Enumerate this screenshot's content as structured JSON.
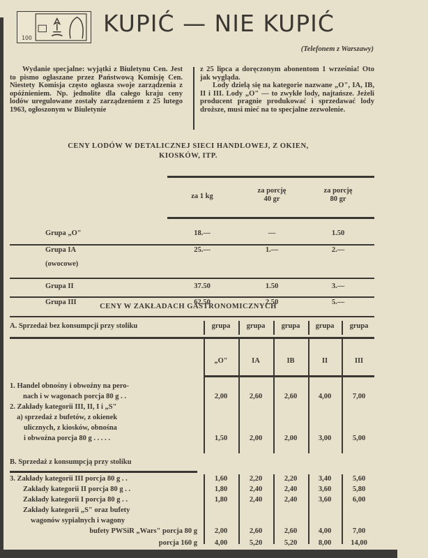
{
  "header": {
    "title": "KUPIĆ — NIE KUPIĆ",
    "subtitle": "(Telefonem z Warszawy)",
    "logo_text": [
      "100"
    ]
  },
  "intro": {
    "lead": "Wydanie specjalne:",
    "left": " wyjątki z Biuletynu Cen. Jest to pismo ogłaszane przez Państwową Komisję Cen. Niestety Komisja często ogłasza swoje zarządzenia z opóźnieniem. Np. jednolite dla całego kraju ceny lodów uregulowane zostały zarządzeniem z 25 lutego 1963, ogłoszonym w Biuletynie",
    "right1": "z 25 lipca a doręczonym abonentom 1 września! Oto jak wygląda.",
    "right2": "Lody dzielą się na kategorie nazwane „O\", IA, IB, II i III. Lody „O\" — to zwykłe lody, najtańsze. Jeżeli producent pragnie produkować i sprzedawać lody droższe, musi mieć na to specjalne zezwolenie."
  },
  "table1": {
    "title1": "CENY LODÓW W DETALICZNEJ SIECI HANDLOWEJ, Z OKIEN,",
    "title2": "KIOSKÓW, ITP.",
    "headers": [
      "za 1 kg",
      "za porcję\n40 gr",
      "za porcję\n80 gr"
    ],
    "rows": [
      {
        "label": "Grupa „O\"",
        "values": [
          "18.—",
          "—",
          "1.50"
        ]
      },
      {
        "label": "Grupa IA",
        "sub": "(owocowe)",
        "values": [
          "25.—",
          "1.—",
          "2.—"
        ]
      },
      {
        "label": "Grupa II",
        "values": [
          "37.50",
          "1.50",
          "3.—"
        ]
      },
      {
        "label": "Grupa III",
        "values": [
          "62.50",
          "2.50",
          "5.—"
        ]
      }
    ]
  },
  "table2": {
    "title": "CENY W ZAKŁADACH GASTRONOMICZNYCH",
    "sectionA": "A. Sprzedaż bez konsumpcji przy stoliku",
    "sectionB": "B. Sprzedaż z konsumpcją przy stoliku",
    "group_label": "grupa",
    "groups": [
      "„O\"",
      "IA",
      "IB",
      "II",
      "III"
    ],
    "rowsA": [
      {
        "lines": [
          "1. Handel obnośny i obwoźny na pero-",
          "nach i w wagonach porcja 80 g . ."
        ],
        "values": [
          "2,00",
          "2,60",
          "2,60",
          "4,00",
          "7,00"
        ]
      },
      {
        "lines": [
          "2. Zakłady kategorii III, II, I i „S\"",
          "a) sprzedaż z bufetów, z okienek",
          "ulicznych, z kiosków, obnośna",
          "i obwoźna porcja 80 g . . . . ."
        ],
        "values": [
          "1,50",
          "2,00",
          "2,00",
          "3,00",
          "5,00"
        ]
      }
    ],
    "rowsB": [
      {
        "lines": [
          "3. Zakłady kategorii III porcja 80 g . ."
        ],
        "values": [
          "1,60",
          "2,20",
          "2,20",
          "3,40",
          "5,60"
        ]
      },
      {
        "lines": [
          "Zakłady kategorii II porcja 80 g . ."
        ],
        "values": [
          "1,80",
          "2,40",
          "2,40",
          "3,60",
          "5,80"
        ]
      },
      {
        "lines": [
          "Zakłady kategorii I porcja 80 g . ."
        ],
        "values": [
          "1,80",
          "2,40",
          "2,40",
          "3,60",
          "6,00"
        ]
      },
      {
        "lines": [
          "Zakłady kategorii „S\" oraz bufety",
          "wagonów sypialnych i wagony",
          "bufety PWSiR „Wars\" porcja 80 g"
        ],
        "values": [
          "2,00",
          "2,60",
          "2,60",
          "4,00",
          "7,00"
        ]
      },
      {
        "lines": [
          "porcja 160 g"
        ],
        "values": [
          "4,00",
          "5,20",
          "5,20",
          "8,00",
          "14,00"
        ]
      }
    ]
  }
}
